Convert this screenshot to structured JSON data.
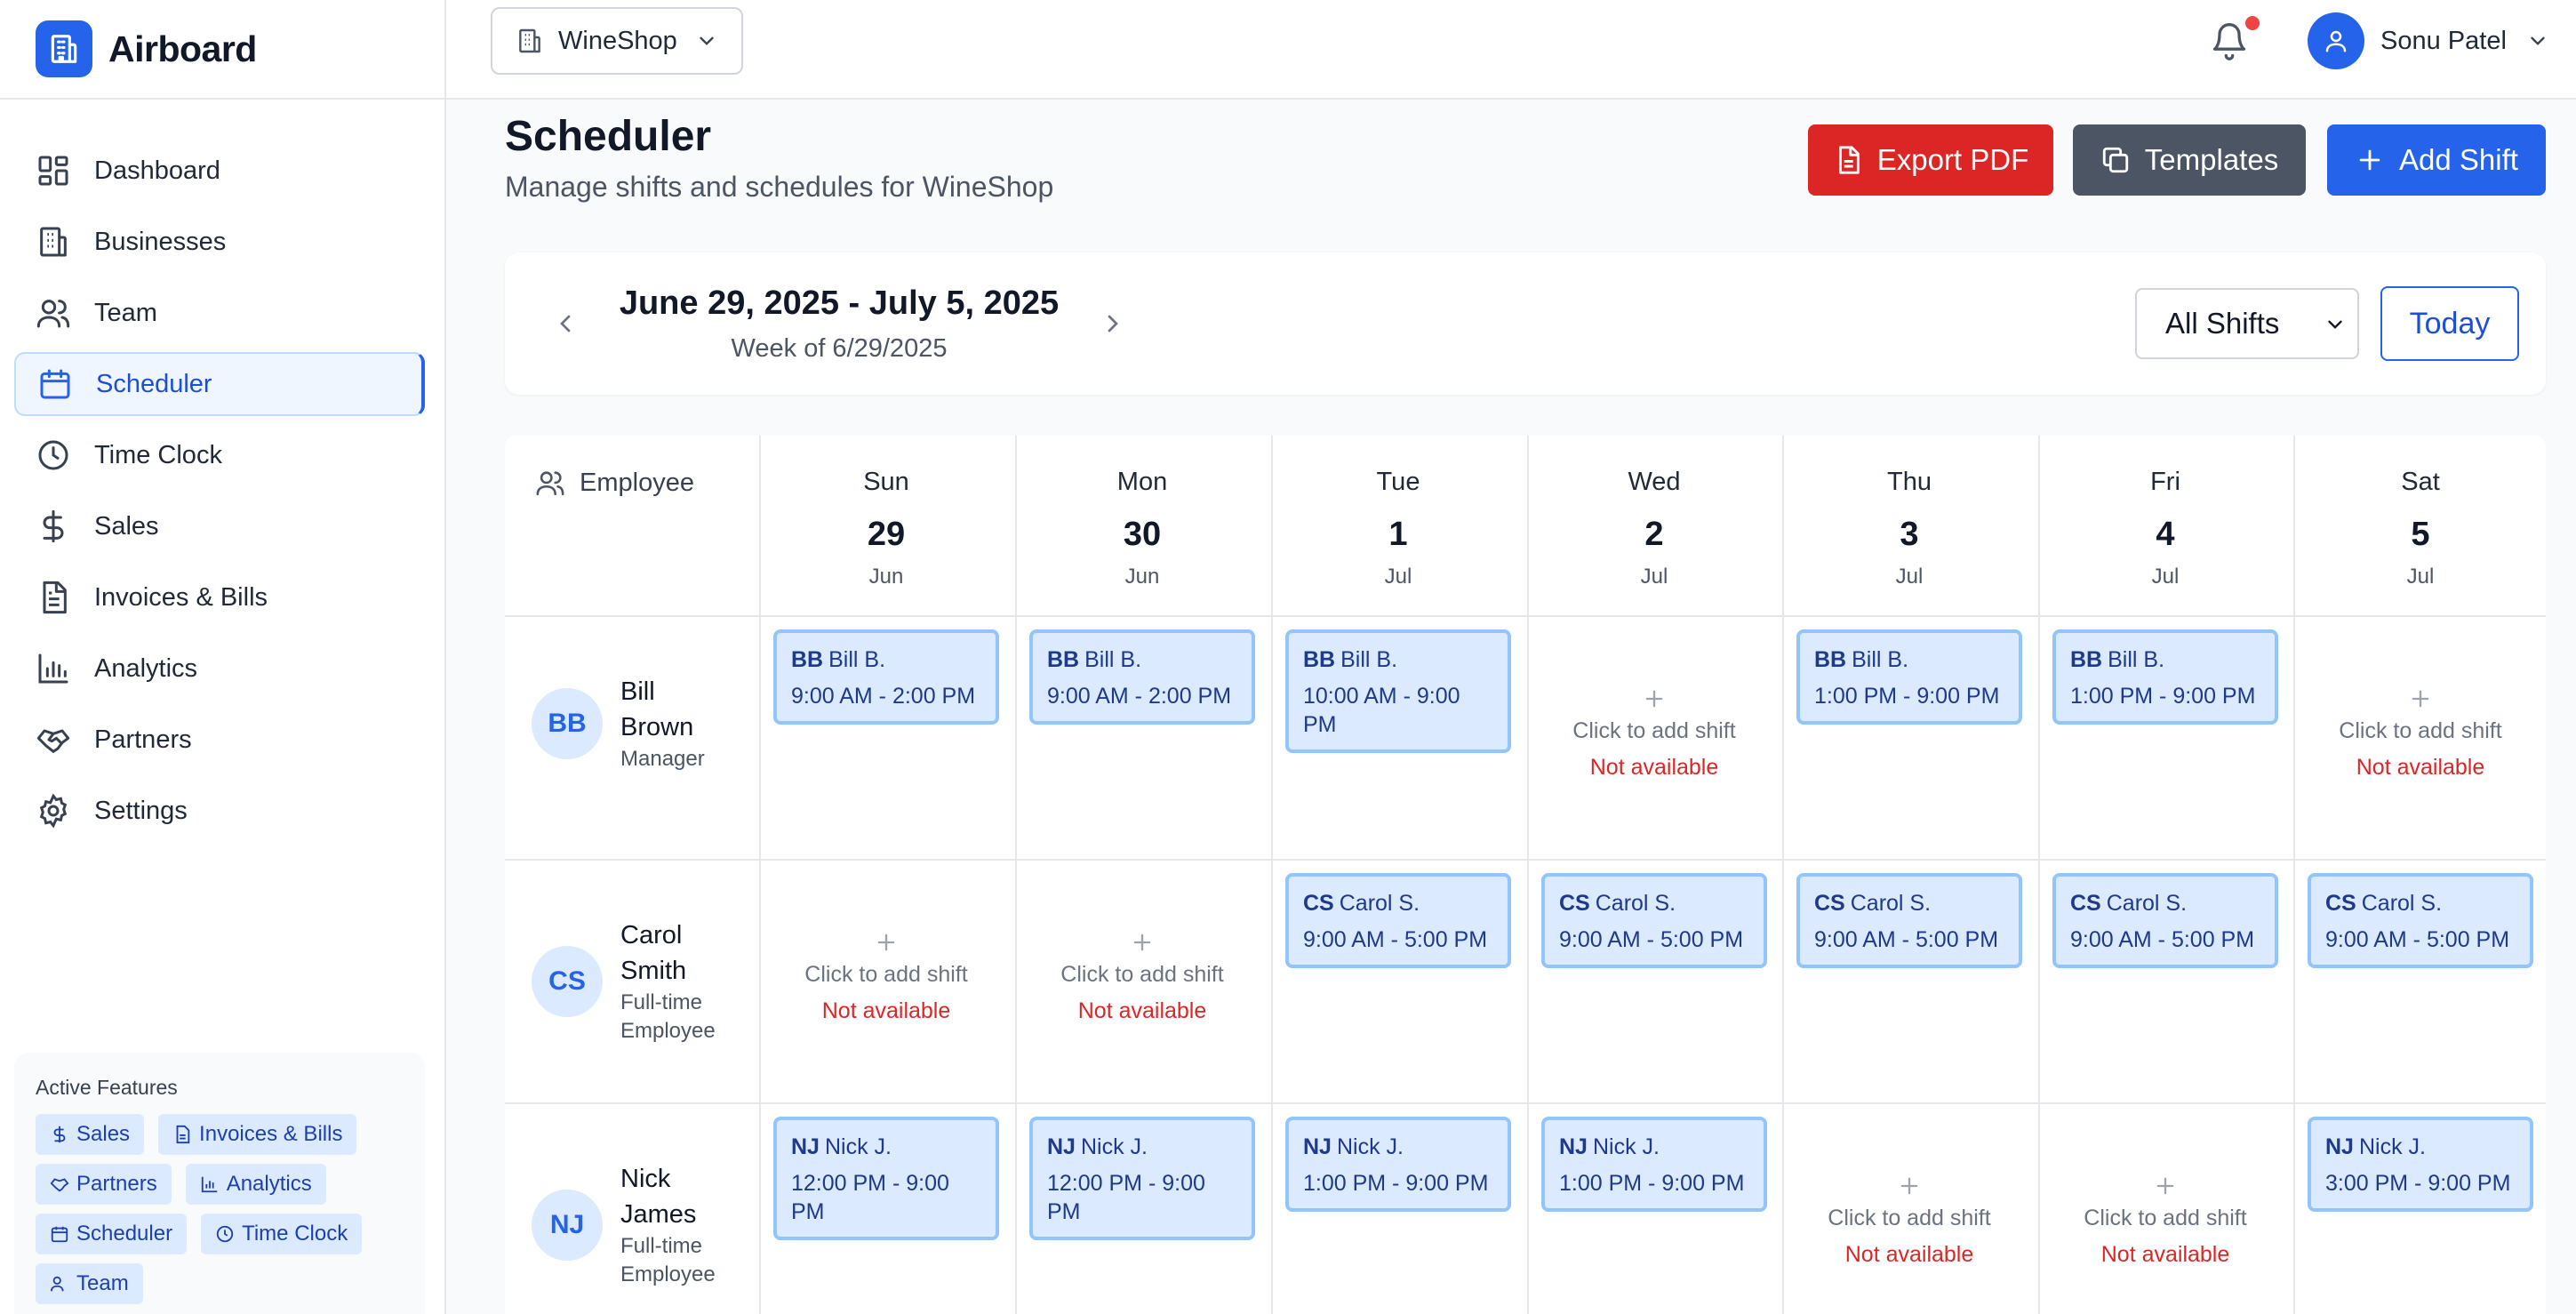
{
  "brand": {
    "name": "Airboard",
    "icon": "building-icon"
  },
  "nav": [
    {
      "label": "Dashboard",
      "icon": "dashboard-icon",
      "active": false
    },
    {
      "label": "Businesses",
      "icon": "building-icon",
      "active": false
    },
    {
      "label": "Team",
      "icon": "users-icon",
      "active": false
    },
    {
      "label": "Scheduler",
      "icon": "calendar-icon",
      "active": true
    },
    {
      "label": "Time Clock",
      "icon": "clock-icon",
      "active": false
    },
    {
      "label": "Sales",
      "icon": "dollar-icon",
      "active": false
    },
    {
      "label": "Invoices & Bills",
      "icon": "document-icon",
      "active": false
    },
    {
      "label": "Analytics",
      "icon": "bar-chart-icon",
      "active": false
    },
    {
      "label": "Partners",
      "icon": "handshake-icon",
      "active": false
    },
    {
      "label": "Settings",
      "icon": "gear-icon",
      "active": false
    }
  ],
  "features": {
    "title": "Active Features",
    "tags": [
      {
        "label": "Sales",
        "icon": "dollar-icon"
      },
      {
        "label": "Invoices & Bills",
        "icon": "document-icon"
      },
      {
        "label": "Partners",
        "icon": "handshake-icon"
      },
      {
        "label": "Analytics",
        "icon": "bar-chart-icon"
      },
      {
        "label": "Scheduler",
        "icon": "calendar-icon"
      },
      {
        "label": "Time Clock",
        "icon": "clock-icon"
      },
      {
        "label": "Team",
        "icon": "users-icon"
      }
    ]
  },
  "topbar": {
    "business": "WineShop",
    "user_name": "Sonu Patel",
    "has_notification": true
  },
  "page": {
    "title": "Scheduler",
    "subtitle": "Manage shifts and schedules for WineShop",
    "export_label": "Export PDF",
    "templates_label": "Templates",
    "add_shift_label": "Add Shift"
  },
  "week": {
    "range": "June 29, 2025 - July 5, 2025",
    "week_of": "Week of 6/29/2025",
    "filter": "All Shifts",
    "today_label": "Today"
  },
  "grid": {
    "employee_header": "Employee",
    "days": [
      {
        "name": "Sun",
        "num": "29",
        "month": "Jun"
      },
      {
        "name": "Mon",
        "num": "30",
        "month": "Jun"
      },
      {
        "name": "Tue",
        "num": "1",
        "month": "Jul"
      },
      {
        "name": "Wed",
        "num": "2",
        "month": "Jul"
      },
      {
        "name": "Thu",
        "num": "3",
        "month": "Jul"
      },
      {
        "name": "Fri",
        "num": "4",
        "month": "Jul"
      },
      {
        "name": "Sat",
        "num": "5",
        "month": "Jul"
      }
    ],
    "empty_text": "Click to add shift",
    "unavailable_text": "Not available",
    "employees": [
      {
        "initials": "BB",
        "name": "Bill Brown",
        "role": "Manager",
        "short": "Bill B.",
        "shifts": [
          "9:00 AM - 2:00 PM",
          "9:00 AM - 2:00 PM",
          "10:00 AM - 9:00 PM",
          null,
          "1:00 PM - 9:00 PM",
          "1:00 PM - 9:00 PM",
          null
        ]
      },
      {
        "initials": "CS",
        "name": "Carol Smith",
        "role": "Full-time Employee",
        "short": "Carol S.",
        "shifts": [
          null,
          null,
          "9:00 AM - 5:00 PM",
          "9:00 AM - 5:00 PM",
          "9:00 AM - 5:00 PM",
          "9:00 AM - 5:00 PM",
          "9:00 AM - 5:00 PM"
        ]
      },
      {
        "initials": "NJ",
        "name": "Nick James",
        "role": "Full-time Employee",
        "short": "Nick J.",
        "shifts": [
          "12:00 PM - 9:00 PM",
          "12:00 PM - 9:00 PM",
          "1:00 PM - 9:00 PM",
          "1:00 PM - 9:00 PM",
          null,
          null,
          "3:00 PM - 9:00 PM"
        ]
      }
    ]
  }
}
